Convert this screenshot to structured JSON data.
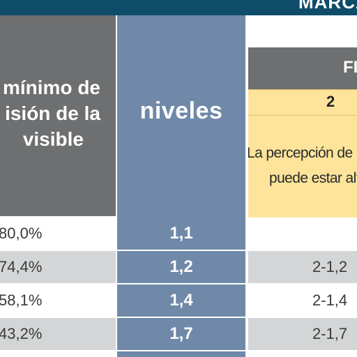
{
  "header": {
    "banner_text": "MARCA",
    "left_header_lines": [
      "mínimo de",
      "isión de la",
      "visible"
    ],
    "levels_header": "niveles",
    "right_group_label": "FI",
    "right_sub_number": "2",
    "right_description_lines": [
      "La percepción de lo",
      "puede estar alt"
    ]
  },
  "rows": [
    {
      "percent": "80,0%",
      "level": "1,1",
      "code": ""
    },
    {
      "percent": "74,4%",
      "level": "1,2",
      "code": "2-1,2"
    },
    {
      "percent": "58,1%",
      "level": "1,4",
      "code": "2-1,4"
    },
    {
      "percent": "43,2%",
      "level": "1,7",
      "code": "2-1,7"
    }
  ],
  "colors": {
    "banner": "#0f4c6a",
    "header_grey": "#6d6f70",
    "levels_blue": "#7089a8",
    "highlight_yellow": "#fde49a",
    "row_shade": "#d3d5d6"
  }
}
